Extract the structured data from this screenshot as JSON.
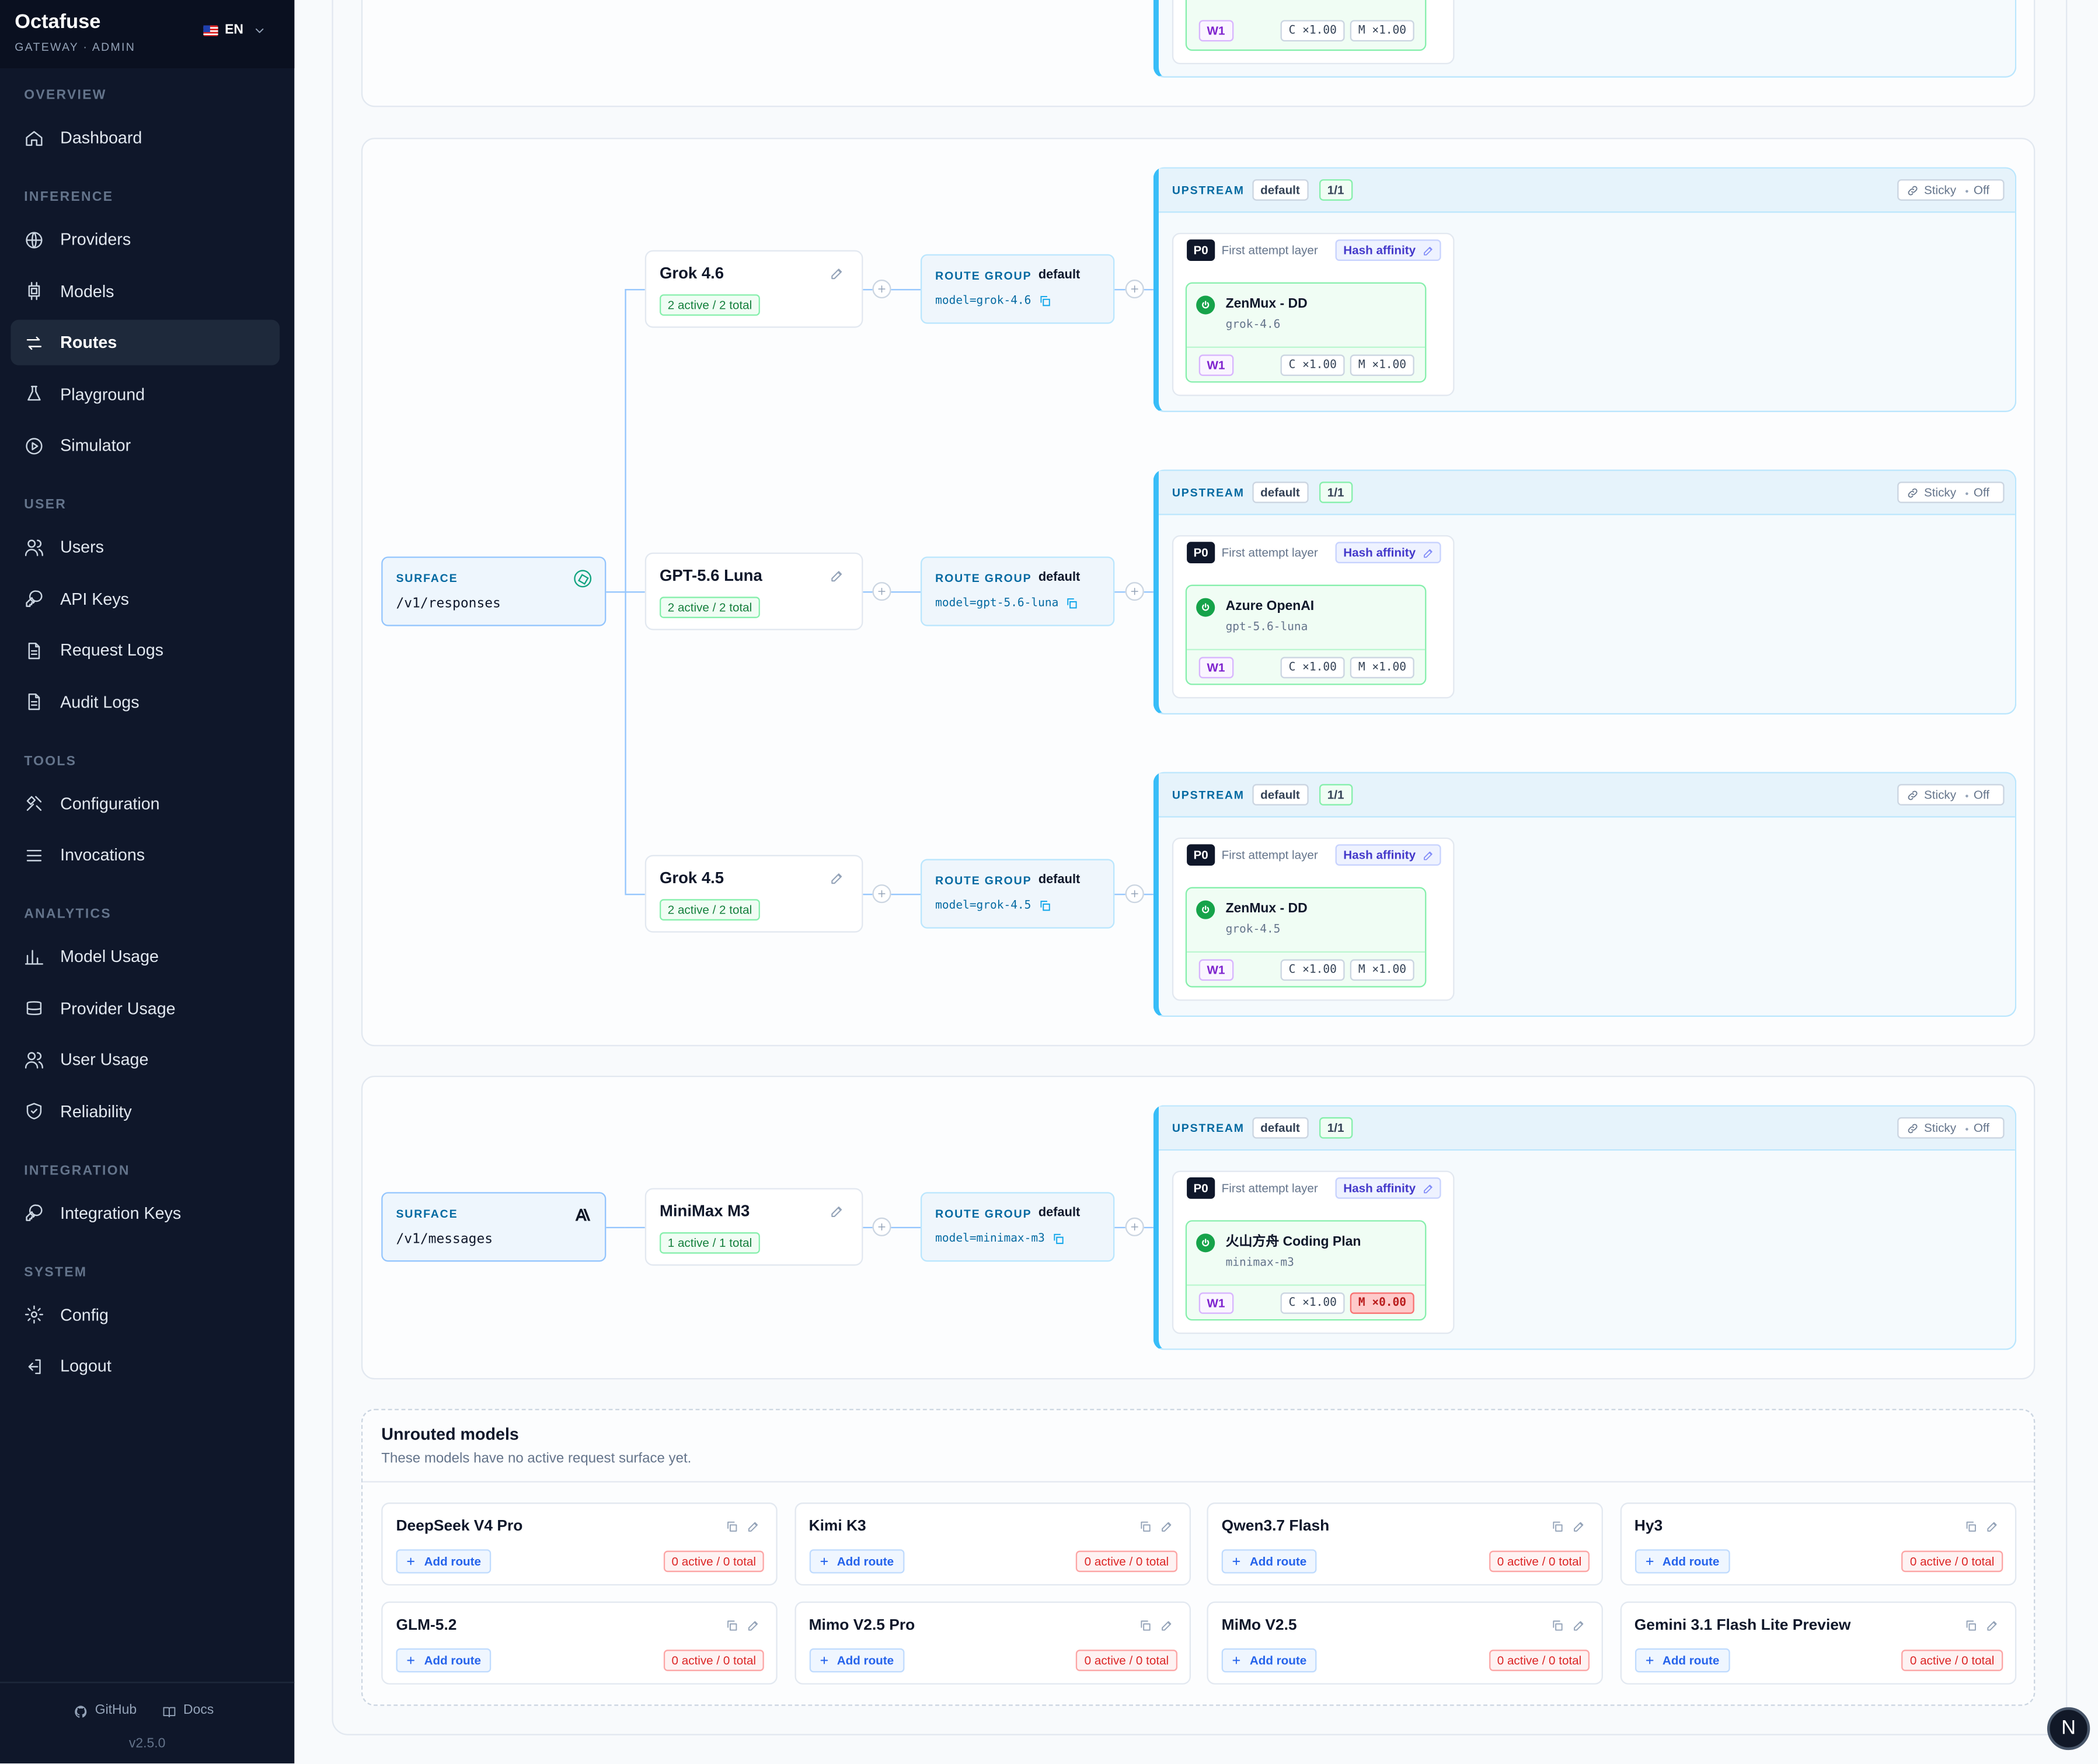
{
  "brand": {
    "name": "Octafuse",
    "subtitle": "GATEWAY · ADMIN",
    "language": "EN"
  },
  "nav": [
    {
      "title": "OVERVIEW",
      "items": [
        {
          "label": "Dashboard",
          "active": false
        }
      ]
    },
    {
      "title": "INFERENCE",
      "items": [
        {
          "label": "Providers",
          "active": false
        },
        {
          "label": "Models",
          "active": false
        },
        {
          "label": "Routes",
          "active": true
        },
        {
          "label": "Playground",
          "active": false
        },
        {
          "label": "Simulator",
          "active": false
        }
      ]
    },
    {
      "title": "USER",
      "items": [
        {
          "label": "Users",
          "active": false
        },
        {
          "label": "API Keys",
          "active": false
        },
        {
          "label": "Request Logs",
          "active": false
        },
        {
          "label": "Audit Logs",
          "active": false
        }
      ]
    },
    {
      "title": "TOOLS",
      "items": [
        {
          "label": "Configuration",
          "active": false
        },
        {
          "label": "Invocations",
          "active": false
        }
      ]
    },
    {
      "title": "ANALYTICS",
      "items": [
        {
          "label": "Model Usage",
          "active": false
        },
        {
          "label": "Provider Usage",
          "active": false
        },
        {
          "label": "User Usage",
          "active": false
        },
        {
          "label": "Reliability",
          "active": false
        }
      ]
    },
    {
      "title": "INTEGRATION",
      "items": [
        {
          "label": "Integration Keys",
          "active": false
        }
      ]
    },
    {
      "title": "SYSTEM",
      "items": [
        {
          "label": "Config",
          "active": false
        },
        {
          "label": "Logout",
          "active": false
        }
      ]
    }
  ],
  "footer": {
    "links": [
      "GitHub",
      "Docs"
    ],
    "version": "v2.5.0"
  },
  "labels": {
    "surface": "SURFACE",
    "route_group": "ROUTE GROUP",
    "upstream": "UPSTREAM",
    "sticky": "Sticky",
    "first_layer": "First attempt layer",
    "add_route": "Add route"
  },
  "top_partial": {
    "weight": "W1",
    "cost": "C ×1.00",
    "mult": "M ×1.00"
  },
  "surfaces": [
    {
      "path": "/v1/responses",
      "routes": [
        {
          "model": "Grok 4.6",
          "status": "2 active / 2 total",
          "group": "default",
          "match": "model=grok-4.6",
          "upstream": {
            "group": "default",
            "count": "1/1",
            "sticky_state": "Off",
            "priority": "P0",
            "strategy": "Hash affinity",
            "target": {
              "provider": "ZenMux - DD",
              "model": "grok-4.6",
              "weight": "W1",
              "cost": "C ×1.00",
              "mult": "M ×1.00",
              "mult_alert": false
            }
          }
        },
        {
          "model": "GPT-5.6 Luna",
          "status": "2 active / 2 total",
          "group": "default",
          "match": "model=gpt-5.6-luna",
          "upstream": {
            "group": "default",
            "count": "1/1",
            "sticky_state": "Off",
            "priority": "P0",
            "strategy": "Hash affinity",
            "target": {
              "provider": "Azure OpenAI",
              "model": "gpt-5.6-luna",
              "weight": "W1",
              "cost": "C ×1.00",
              "mult": "M ×1.00",
              "mult_alert": false
            }
          }
        },
        {
          "model": "Grok 4.5",
          "status": "2 active / 2 total",
          "group": "default",
          "match": "model=grok-4.5",
          "upstream": {
            "group": "default",
            "count": "1/1",
            "sticky_state": "Off",
            "priority": "P0",
            "strategy": "Hash affinity",
            "target": {
              "provider": "ZenMux - DD",
              "model": "grok-4.5",
              "weight": "W1",
              "cost": "C ×1.00",
              "mult": "M ×1.00",
              "mult_alert": false
            }
          }
        }
      ]
    },
    {
      "path": "/v1/messages",
      "routes": [
        {
          "model": "MiniMax M3",
          "status": "1 active / 1 total",
          "group": "default",
          "match": "model=minimax-m3",
          "upstream": {
            "group": "default",
            "count": "1/1",
            "sticky_state": "Off",
            "priority": "P0",
            "strategy": "Hash affinity",
            "target": {
              "provider": "火山方舟 Coding Plan",
              "model": "minimax-m3",
              "weight": "W1",
              "cost": "C ×1.00",
              "mult": "M ×0.00",
              "mult_alert": true
            }
          }
        }
      ]
    }
  ],
  "unrouted": {
    "title": "Unrouted models",
    "subtitle": "These models have no active request surface yet.",
    "models": [
      {
        "name": "DeepSeek V4 Pro",
        "status": "0 active / 0 total"
      },
      {
        "name": "Kimi K3",
        "status": "0 active / 0 total"
      },
      {
        "name": "Qwen3.7 Flash",
        "status": "0 active / 0 total"
      },
      {
        "name": "Hy3",
        "status": "0 active / 0 total"
      },
      {
        "name": "GLM-5.2",
        "status": "0 active / 0 total"
      },
      {
        "name": "Mimo V2.5 Pro",
        "status": "0 active / 0 total"
      },
      {
        "name": "MiMo V2.5",
        "status": "0 active / 0 total"
      },
      {
        "name": "Gemini 3.1 Flash Lite Preview",
        "status": "0 active / 0 total"
      }
    ]
  },
  "avatar": "N"
}
